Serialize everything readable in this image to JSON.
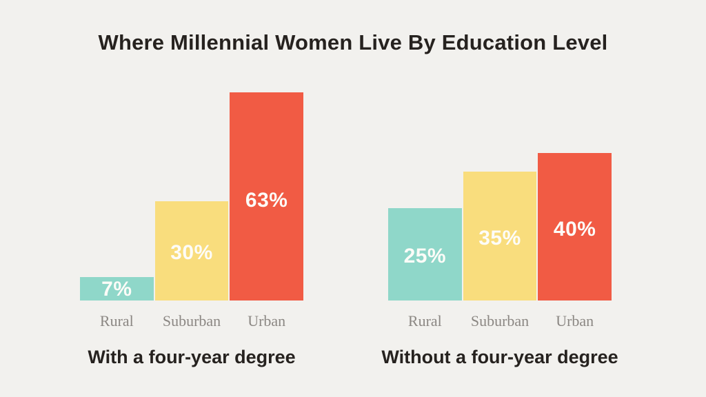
{
  "page": {
    "title": "Where Millennial Women Live By Education Level"
  },
  "theme": {
    "background": "#f2f1ee",
    "title_color": "#26221f",
    "caption_color": "#26221f",
    "category_label_color": "#8b8783",
    "value_label_color": "#fdfcf8",
    "rural_color": "#8fd7c9",
    "suburban_color": "#f9dd7d",
    "urban_color": "#f15b44"
  },
  "chart_data": [
    {
      "type": "bar",
      "title": "With a four-year degree",
      "categories": [
        "Rural",
        "Suburban",
        "Urban"
      ],
      "values": [
        7,
        30,
        63
      ],
      "value_labels": [
        "7%",
        "30%",
        "63%"
      ],
      "unit": "percent",
      "ylim": [
        0,
        100
      ],
      "grid": false,
      "legend": "none",
      "bar_colors": [
        "#8fd7c9",
        "#f9dd7d",
        "#f15b44"
      ]
    },
    {
      "type": "bar",
      "title": "Without a four-year degree",
      "categories": [
        "Rural",
        "Suburban",
        "Urban"
      ],
      "values": [
        25,
        35,
        40
      ],
      "value_labels": [
        "25%",
        "35%",
        "40%"
      ],
      "unit": "percent",
      "ylim": [
        0,
        100
      ],
      "grid": false,
      "legend": "none",
      "bar_colors": [
        "#8fd7c9",
        "#f9dd7d",
        "#f15b44"
      ]
    }
  ]
}
